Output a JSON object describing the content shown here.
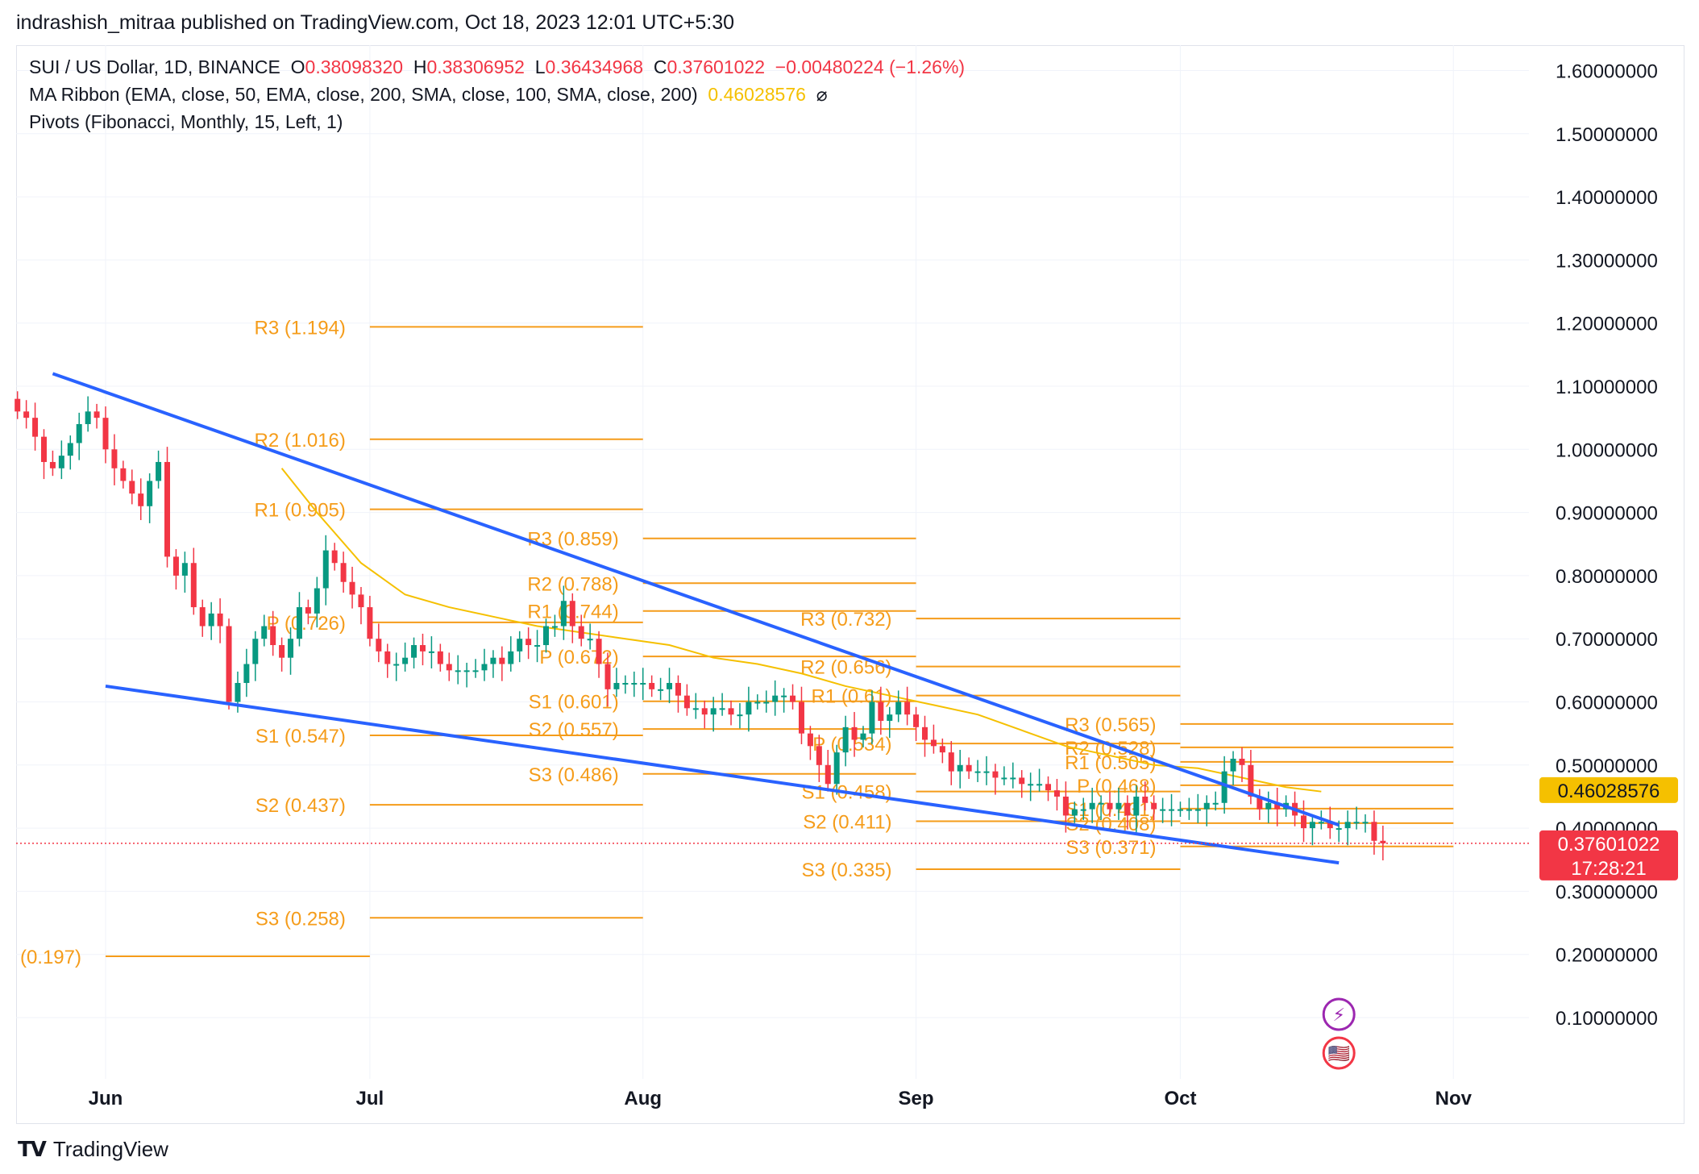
{
  "header": {
    "publisher_line": "indrashish_mitraa published on TradingView.com, Oct 18, 2023 12:01 UTC+5:30"
  },
  "legend": {
    "symbol": "SUI / US Dollar, 1D, BINANCE",
    "o_label": "O",
    "o_value": "0.38098320",
    "h_label": "H",
    "h_value": "0.38306952",
    "l_label": "L",
    "l_value": "0.36434968",
    "c_label": "C",
    "c_value": "0.37601022",
    "change": "−0.00480224 (−1.26%)",
    "ma_ribbon": "MA Ribbon (EMA, close, 50, EMA, close, 200, SMA, close, 100, SMA, close, 200)",
    "ma_value": "0.46028576",
    "ma_symbol": "⌀",
    "pivots": "Pivots (Fibonacci, Monthly, 15, Left, 1)"
  },
  "brand": {
    "logo": "TV",
    "name": "TradingView"
  },
  "colors": {
    "up": "#089981",
    "down": "#f23645",
    "pivot": "#f59c1a",
    "trend": "#2962ff",
    "ma": "#f5c000",
    "price_line": "#f23645"
  },
  "chart_data": {
    "type": "candlestick",
    "symbol": "SUI / US Dollar",
    "interval": "1D",
    "ylim": [
      0.0,
      1.65
    ],
    "y_ticks": [
      "1.60000000",
      "1.50000000",
      "1.40000000",
      "1.30000000",
      "1.20000000",
      "1.10000000",
      "1.00000000",
      "0.90000000",
      "0.80000000",
      "0.70000000",
      "0.60000000",
      "0.50000000",
      "0.40000000",
      "0.30000000",
      "0.20000000",
      "0.10000000"
    ],
    "x_ticks": [
      {
        "label": "Jun",
        "day": 6
      },
      {
        "label": "Jul",
        "day": 36
      },
      {
        "label": "Aug",
        "day": 67
      },
      {
        "label": "Sep",
        "day": 98
      },
      {
        "label": "Oct",
        "day": 128
      },
      {
        "label": "Nov",
        "day": 159
      }
    ],
    "price_badges": [
      {
        "value": "0.46028576",
        "price": 0.46028576,
        "color": "#f5c000",
        "text_color": "#131722"
      },
      {
        "value": "0.37601022",
        "price": 0.37601022,
        "color": "#f23645",
        "text_color": "#ffffff",
        "sub": "17:28:21"
      }
    ],
    "current_price": 0.37601022,
    "candles_from_day": -4,
    "closes": [
      1.06,
      1.05,
      1.02,
      0.98,
      0.97,
      0.99,
      1.01,
      1.04,
      1.06,
      1.05,
      1.0,
      0.97,
      0.95,
      0.93,
      0.91,
      0.95,
      0.98,
      0.83,
      0.8,
      0.82,
      0.75,
      0.72,
      0.74,
      0.72,
      0.6,
      0.63,
      0.66,
      0.7,
      0.72,
      0.69,
      0.67,
      0.7,
      0.75,
      0.74,
      0.78,
      0.84,
      0.82,
      0.79,
      0.77,
      0.75,
      0.7,
      0.68,
      0.66,
      0.66,
      0.67,
      0.69,
      0.68,
      0.68,
      0.66,
      0.65,
      0.65,
      0.65,
      0.65,
      0.66,
      0.67,
      0.66,
      0.68,
      0.7,
      0.69,
      0.69,
      0.72,
      0.72,
      0.76,
      0.72,
      0.7,
      0.7,
      0.66,
      0.62,
      0.63,
      0.63,
      0.63,
      0.63,
      0.62,
      0.62,
      0.63,
      0.61,
      0.59,
      0.59,
      0.58,
      0.59,
      0.59,
      0.58,
      0.58,
      0.6,
      0.6,
      0.6,
      0.61,
      0.61,
      0.6,
      0.55,
      0.53,
      0.5,
      0.47,
      0.52,
      0.56,
      0.54,
      0.55,
      0.6,
      0.57,
      0.58,
      0.6,
      0.58,
      0.56,
      0.54,
      0.53,
      0.52,
      0.49,
      0.5,
      0.49,
      0.49,
      0.49,
      0.48,
      0.48,
      0.48,
      0.47,
      0.47,
      0.47,
      0.46,
      0.45,
      0.42,
      0.43,
      0.43,
      0.44,
      0.44,
      0.43,
      0.44,
      0.42,
      0.45,
      0.44,
      0.43,
      0.43,
      0.43,
      0.43,
      0.43,
      0.43,
      0.44,
      0.44,
      0.49,
      0.51,
      0.5,
      0.45,
      0.43,
      0.44,
      0.43,
      0.44,
      0.42,
      0.4,
      0.41,
      0.41,
      0.4,
      0.4,
      0.41,
      0.41,
      0.41,
      0.38,
      0.376
    ],
    "ma50": [
      [
        26,
        0.97
      ],
      [
        30,
        0.9
      ],
      [
        35,
        0.82
      ],
      [
        40,
        0.77
      ],
      [
        45,
        0.75
      ],
      [
        50,
        0.735
      ],
      [
        55,
        0.72
      ],
      [
        60,
        0.71
      ],
      [
        65,
        0.7
      ],
      [
        70,
        0.69
      ],
      [
        75,
        0.67
      ],
      [
        80,
        0.66
      ],
      [
        85,
        0.645
      ],
      [
        90,
        0.625
      ],
      [
        95,
        0.61
      ],
      [
        100,
        0.595
      ],
      [
        105,
        0.58
      ],
      [
        110,
        0.555
      ],
      [
        115,
        0.53
      ],
      [
        120,
        0.515
      ],
      [
        125,
        0.5
      ],
      [
        130,
        0.495
      ],
      [
        135,
        0.48
      ],
      [
        140,
        0.465
      ],
      [
        144,
        0.458
      ]
    ],
    "trendlines": [
      {
        "name": "upper",
        "from": [
          0,
          1.12
        ],
        "to": [
          146,
          0.405
        ]
      },
      {
        "name": "lower",
        "from": [
          6,
          0.625
        ],
        "to": [
          146,
          0.345
        ]
      }
    ],
    "pivot_periods": [
      {
        "from_day": 6,
        "to_day": 36,
        "levels": [
          {
            "label": "(0.197)",
            "value": 0.197
          }
        ]
      },
      {
        "from_day": 36,
        "to_day": 67,
        "levels": [
          {
            "label": "R3 (1.194)",
            "value": 1.194
          },
          {
            "label": "R2 (1.016)",
            "value": 1.016
          },
          {
            "label": "R1 (0.905)",
            "value": 0.905
          },
          {
            "label": "P (0.726)",
            "value": 0.726
          },
          {
            "label": "S1 (0.547)",
            "value": 0.547
          },
          {
            "label": "S2 (0.437)",
            "value": 0.437
          },
          {
            "label": "S3 (0.258)",
            "value": 0.258
          }
        ]
      },
      {
        "from_day": 67,
        "to_day": 98,
        "levels": [
          {
            "label": "R3 (0.859)",
            "value": 0.859
          },
          {
            "label": "R2 (0.788)",
            "value": 0.788
          },
          {
            "label": "R1 (0.744)",
            "value": 0.744
          },
          {
            "label": "P (0.672)",
            "value": 0.672
          },
          {
            "label": "S1 (0.601)",
            "value": 0.601
          },
          {
            "label": "S2 (0.557)",
            "value": 0.557
          },
          {
            "label": "S3 (0.486)",
            "value": 0.486
          }
        ]
      },
      {
        "from_day": 98,
        "to_day": 128,
        "levels": [
          {
            "label": "R3 (0.732)",
            "value": 0.732
          },
          {
            "label": "R2 (0.656)",
            "value": 0.656
          },
          {
            "label": "R1 (0.61)",
            "value": 0.61
          },
          {
            "label": "P (0.534)",
            "value": 0.534
          },
          {
            "label": "S1 (0.458)",
            "value": 0.458
          },
          {
            "label": "S2 (0.411)",
            "value": 0.411
          },
          {
            "label": "S3 (0.335)",
            "value": 0.335
          }
        ]
      },
      {
        "from_day": 128,
        "to_day": 159,
        "levels": [
          {
            "label": "R3 (0.565)",
            "value": 0.565
          },
          {
            "label": "R2 (0.528)",
            "value": 0.528
          },
          {
            "label": "R1 (0.505)",
            "value": 0.505
          },
          {
            "label": "P (0.468)",
            "value": 0.468
          },
          {
            "label": "S1 (0.431)",
            "value": 0.431
          },
          {
            "label": "S2 (0.408)",
            "value": 0.408
          },
          {
            "label": "S3 (0.371)",
            "value": 0.371
          }
        ]
      }
    ],
    "event_icons": [
      {
        "name": "lightning-event-icon",
        "day": 146,
        "symbol": "⚡"
      },
      {
        "name": "us-flag-event-icon",
        "day": 146,
        "symbol": "🇺🇸"
      }
    ]
  }
}
